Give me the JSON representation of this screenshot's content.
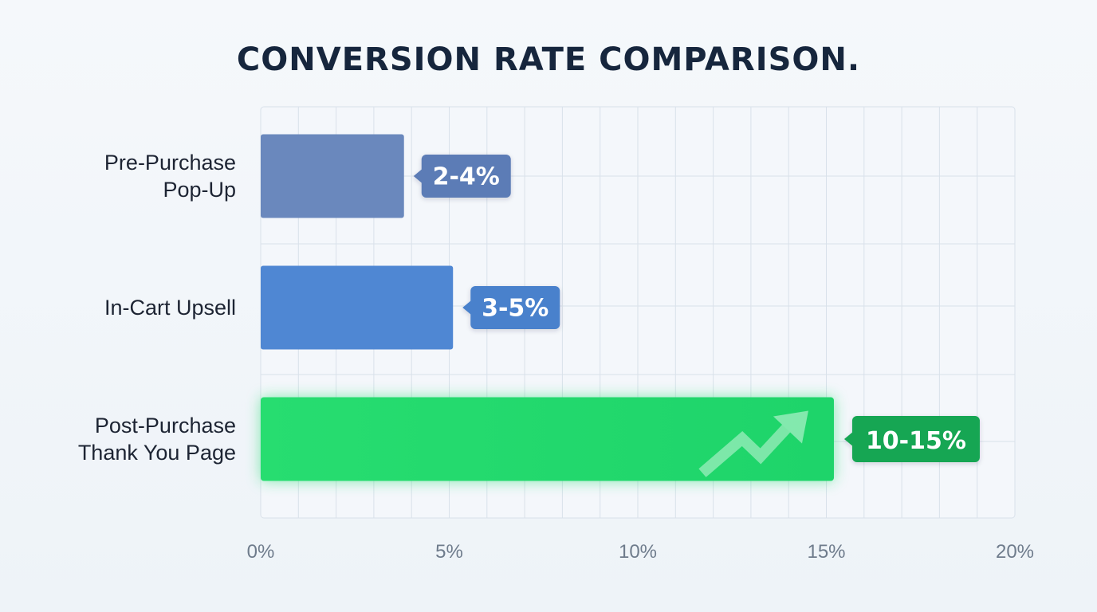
{
  "chart_data": {
    "type": "bar",
    "orientation": "horizontal",
    "title": "CONVERSION RATE COMPARISON.",
    "categories": [
      [
        "Pre-Purchase",
        "Pop-Up"
      ],
      [
        "In-Cart Upsell"
      ],
      [
        "Post-Purchase",
        "Thank You Page"
      ]
    ],
    "values": [
      3.8,
      5.1,
      15.2
    ],
    "value_labels": [
      "2-4%",
      "3-5%",
      "10-15%"
    ],
    "xlim": [
      0,
      20
    ],
    "xticks": [
      0,
      5,
      10,
      15,
      20
    ],
    "xtick_labels": [
      "0%",
      "5%",
      "10%",
      "15%",
      "20%"
    ],
    "grid": true,
    "highlighted_category_index": 2,
    "highlight_icon": "trending-up-arrow-icon",
    "colors": {
      "bars": [
        "#6a88bd",
        "#4f87d3",
        "#26dd72"
      ],
      "labels": [
        "#5c7cb6",
        "#4a81cc",
        "#14a652"
      ],
      "grid": "#d9e1ea",
      "title": "#16263d"
    }
  }
}
